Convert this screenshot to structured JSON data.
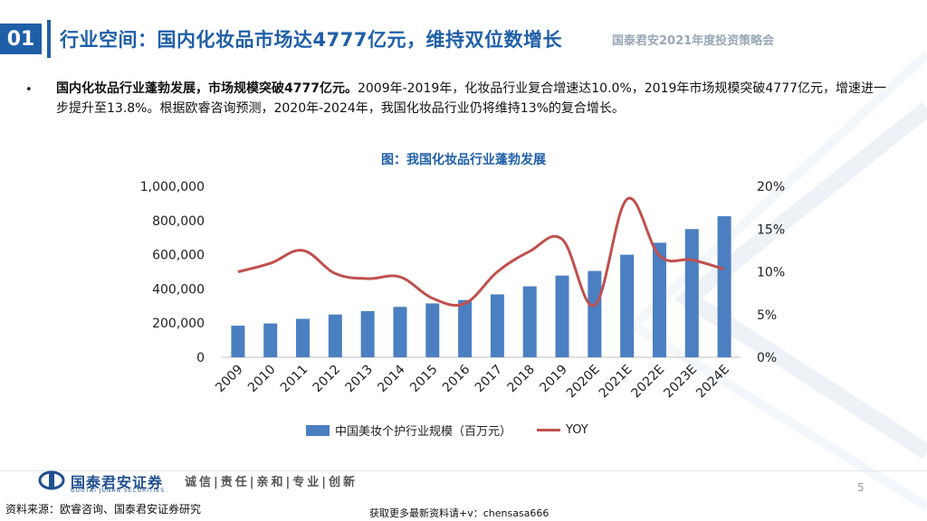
{
  "header": {
    "section_number": "01",
    "title": "行业空间：国内化妆品市场达4777亿元，维持双位数增长",
    "conference": "国泰君安2021年度投资策略会"
  },
  "bullet": {
    "bold_text": "国内化妆品行业蓬勃发展，市场规模突破4777亿元。",
    "text": "2009年-2019年，化妆品行业复合增速达10.0%，2019年市场规模突破4777亿元，增速进一步提升至13.8%。根据欧睿咨询预测，2020年-2024年，我国化妆品行业仍将维持13%的复合增长。"
  },
  "chart_data": {
    "type": "bar",
    "title": "图：我国化妆品行业蓬勃发展",
    "categories": [
      "2009",
      "2010",
      "2011",
      "2012",
      "2013",
      "2014",
      "2015",
      "2016",
      "2017",
      "2018",
      "2019",
      "2020E",
      "2021E",
      "2022E",
      "2023E",
      "2024E"
    ],
    "series": [
      {
        "name": "中国美妆个护行业规模（百万元）",
        "type": "bar",
        "axis": "left",
        "color": "#4a7fc1",
        "values": [
          185000,
          198000,
          225000,
          250000,
          270000,
          295000,
          315000,
          335000,
          368000,
          415000,
          477700,
          505000,
          600000,
          670000,
          750000,
          825000
        ]
      },
      {
        "name": "YOY",
        "type": "line",
        "axis": "right",
        "color": "#c0504d",
        "values": [
          10.0,
          11.0,
          12.5,
          9.8,
          9.2,
          9.4,
          6.9,
          6.3,
          10.0,
          12.4,
          13.8,
          6.1,
          18.5,
          11.9,
          11.4,
          10.3
        ]
      }
    ],
    "y_left": {
      "range": [
        0,
        1000000
      ],
      "ticks": [
        "0",
        "200,000",
        "400,000",
        "600,000",
        "800,000",
        "1,000,000"
      ]
    },
    "y_right": {
      "range": [
        0,
        20
      ],
      "ticks": [
        "0%",
        "5%",
        "10%",
        "15%",
        "20%"
      ]
    },
    "grid": false,
    "legend_position": "bottom"
  },
  "footer": {
    "logo_text": "国泰君安证券",
    "logo_sub": "GUOTAI JUNAN SECURITIES",
    "slogan": "诚信|责任|亲和|专业|创新",
    "page_number": "5",
    "source": "资料来源：欧睿咨询、国泰君安证券研究",
    "promo": "获取更多最新资料请+v：chensasa666"
  },
  "colors": {
    "brand": "#1f5fa8",
    "bar": "#4a7fc1",
    "line": "#c0504d"
  }
}
